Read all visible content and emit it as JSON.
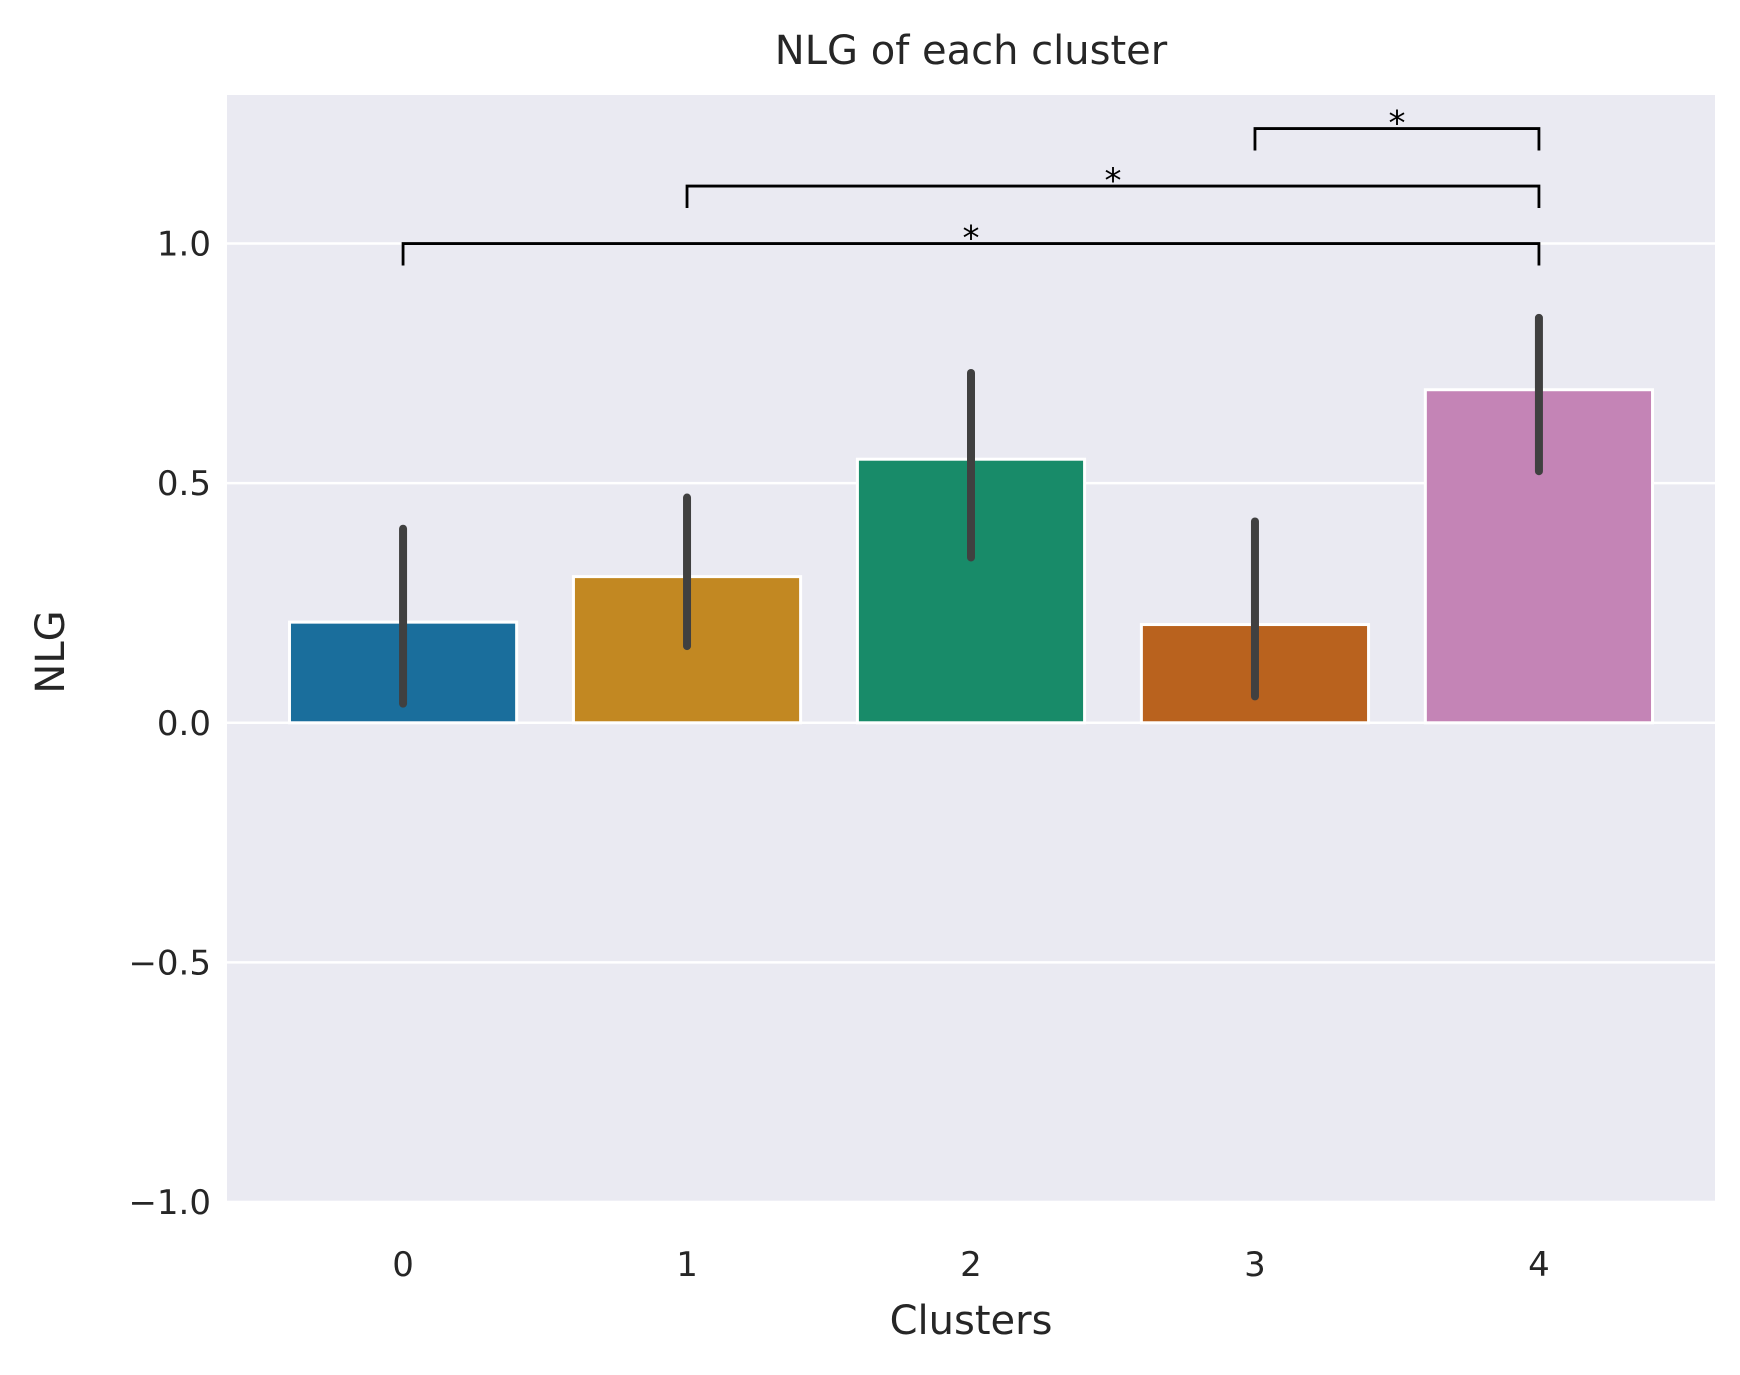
{
  "chart_data": {
    "type": "bar",
    "title": "NLG of each cluster",
    "xlabel": "Clusters",
    "ylabel": "NLG",
    "categories": [
      "0",
      "1",
      "2",
      "3",
      "4"
    ],
    "values": [
      0.21,
      0.305,
      0.55,
      0.205,
      0.695
    ],
    "errors": [
      [
        0.04,
        0.405
      ],
      [
        0.16,
        0.47
      ],
      [
        0.345,
        0.73
      ],
      [
        0.055,
        0.42
      ],
      [
        0.525,
        0.845
      ]
    ],
    "colors": [
      "#1a6e9c",
      "#c28822",
      "#188b69",
      "#b9621e",
      "#c484b6"
    ],
    "ylim": [
      -1.0,
      1.31
    ],
    "yticks": [
      -1.0,
      -0.5,
      0.0,
      0.5,
      1.0
    ],
    "ytick_labels": [
      "−1.0",
      "−0.5",
      "0.0",
      "0.5",
      "1.0"
    ],
    "grid": true,
    "background": "#eaeaf2",
    "error_color": "#404040",
    "annotations": [
      {
        "from": "0",
        "to": "4",
        "y": 1.0,
        "label": "*"
      },
      {
        "from": "1",
        "to": "4",
        "y": 1.12,
        "label": "*"
      },
      {
        "from": "3",
        "to": "4",
        "y": 1.24,
        "label": "*"
      }
    ]
  }
}
